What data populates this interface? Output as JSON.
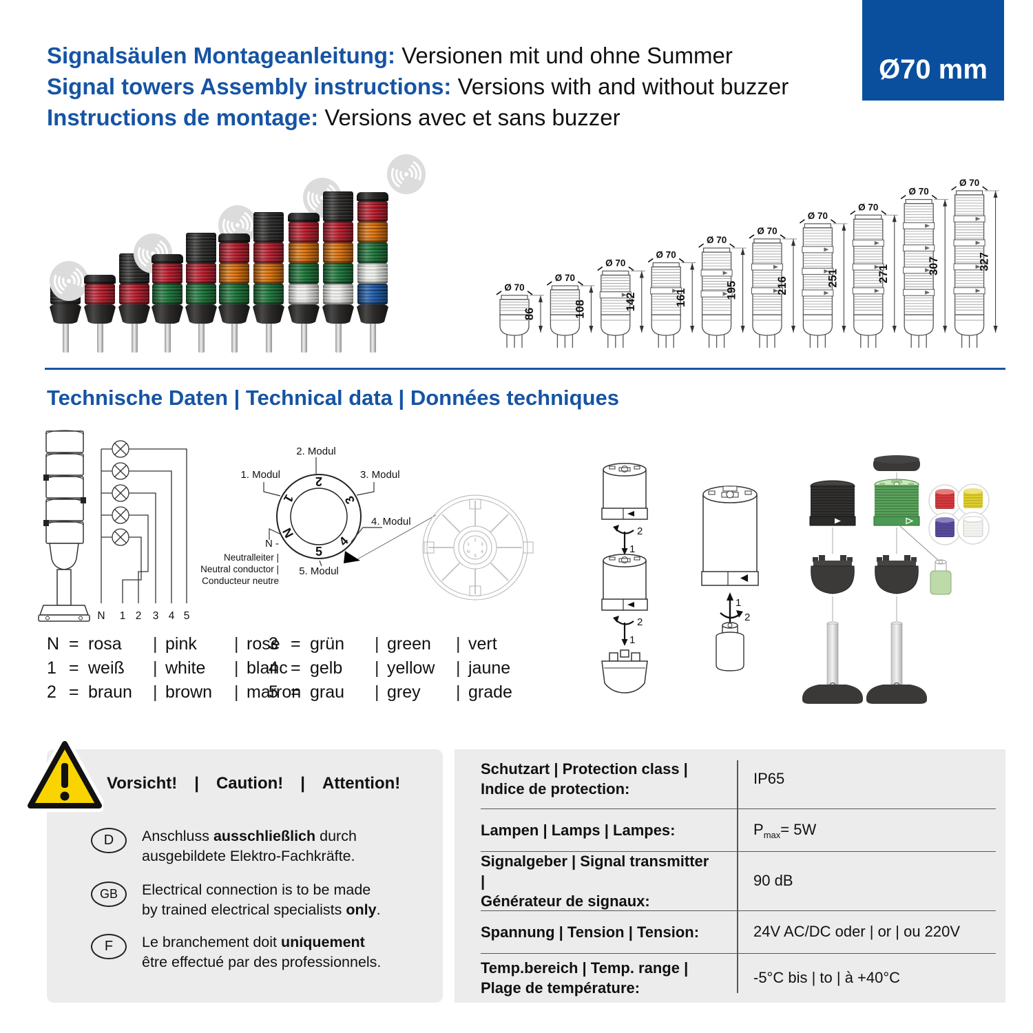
{
  "badge": {
    "text": "Ø70 mm"
  },
  "header": {
    "lines": [
      {
        "label": "Signalsäulen Montageanleitung:",
        "text": " Versionen mit und ohne Summer"
      },
      {
        "label": "Signal towers Assembly instructions:",
        "text": " Versions with and without buzzer"
      },
      {
        "label": "Instructions de montage:",
        "text": " Versions avec et sans buzzer"
      }
    ]
  },
  "section": {
    "title": "Technische Daten | Technical data | Données techniques"
  },
  "photos": {
    "colors": {
      "black": "#2e2d2c",
      "cap": "#2b2a29",
      "buzzer": "#2e2d2c",
      "red": "#c01f2f",
      "orange": "#e1750c",
      "green": "#1e7a3c",
      "clear": "#e9ebe7",
      "blue": "#1f5fae"
    },
    "towers": [
      {
        "modules": [
          "black"
        ],
        "buzzer": true
      },
      {
        "modules": [
          "cap",
          "red"
        ],
        "buzzer": false
      },
      {
        "modules": [
          "buzzer",
          "red"
        ],
        "buzzer": true
      },
      {
        "modules": [
          "cap",
          "red",
          "green"
        ],
        "buzzer": false
      },
      {
        "modules": [
          "buzzer",
          "red",
          "green"
        ],
        "buzzer": true
      },
      {
        "modules": [
          "cap",
          "red",
          "orange",
          "green"
        ],
        "buzzer": false
      },
      {
        "modules": [
          "buzzer",
          "red",
          "orange",
          "green"
        ],
        "buzzer": true
      },
      {
        "modules": [
          "cap",
          "red",
          "orange",
          "green",
          "clear"
        ],
        "buzzer": false
      },
      {
        "modules": [
          "buzzer",
          "red",
          "orange",
          "green",
          "clear"
        ],
        "buzzer": true
      },
      {
        "modules": [
          "cap",
          "red",
          "orange",
          "green",
          "clear",
          "blue"
        ],
        "buzzer": false
      }
    ]
  },
  "drawings": {
    "dia": "Ø 70",
    "heights": [
      86,
      108,
      142,
      161,
      195,
      216,
      251,
      271,
      307,
      327
    ],
    "segments": [
      1,
      1,
      2,
      2,
      3,
      3,
      4,
      4,
      5,
      5
    ]
  },
  "wiring": {
    "terminals": [
      "N",
      "1",
      "2",
      "3",
      "4",
      "5"
    ],
    "ring_digits": [
      "1",
      "2",
      "3",
      "4",
      "5",
      "N"
    ],
    "ring_labels": {
      "m1": "1. Modul",
      "m2": "2. Modul",
      "m3": "3. Modul",
      "m4": "4. Modul",
      "m5": "5. Modul"
    },
    "neutral": {
      "n": "N -",
      "l1": "Neutralleiter |",
      "l2": "Neutral conductor |",
      "l3": "Conducteur neutre"
    },
    "steps": {
      "s1": "1",
      "s2": "2"
    }
  },
  "legend": {
    "eq": "=",
    "pipe": "|",
    "col1": [
      {
        "k": "N",
        "de": "rosa",
        "en": "pink",
        "fr": "rose"
      },
      {
        "k": "1",
        "de": "weiß",
        "en": "white",
        "fr": "blanc"
      },
      {
        "k": "2",
        "de": "braun",
        "en": "brown",
        "fr": "marron"
      }
    ],
    "col2": [
      {
        "k": "3",
        "de": "grün",
        "en": "green",
        "fr": "vert"
      },
      {
        "k": "4",
        "de": "gelb",
        "en": "yellow",
        "fr": "jaune"
      },
      {
        "k": "5",
        "de": "grau",
        "en": "grey",
        "fr": "grade"
      }
    ]
  },
  "warning": {
    "de": "Vorsicht!",
    "en": "Caution!",
    "fr": "Attention!",
    "pipe": "|",
    "items": [
      {
        "lang": "D",
        "l1a": "Anschluss ",
        "l1b": "ausschließlich",
        "l1c": " durch",
        "l2a": "ausgebildete Elektro-Fachkräfte."
      },
      {
        "lang": "GB",
        "l1a": "Electrical connection is to be made",
        "l2a": "by trained electrical specialists ",
        "l2b": "only",
        "l2c": "."
      },
      {
        "lang": "F",
        "l1a": "Le branchement doit ",
        "l1b": "uniquement",
        "l2a": "être effectué par des professionnels."
      }
    ]
  },
  "spec": {
    "rows": [
      {
        "l1": "Schutzart | Protection class |",
        "l2": "Indice de protection:",
        "v": "IP65"
      },
      {
        "l1": "Lampen | Lamps | Lampes:",
        "vp": "P",
        "vsub": "max",
        "vrest": " = 5W"
      },
      {
        "l1": "Signalgeber | Signal transmitter |",
        "l2": "Générateur de signaux:",
        "v": "90 dB"
      },
      {
        "l1": "Spannung | Tension | Tension:",
        "v": "24V AC/DC oder | or | ou 220V"
      },
      {
        "l1": "Temp.bereich | Temp. range |",
        "l2": "Plage de température:",
        "v": "-5°C bis | to | à  +40°C"
      }
    ]
  }
}
